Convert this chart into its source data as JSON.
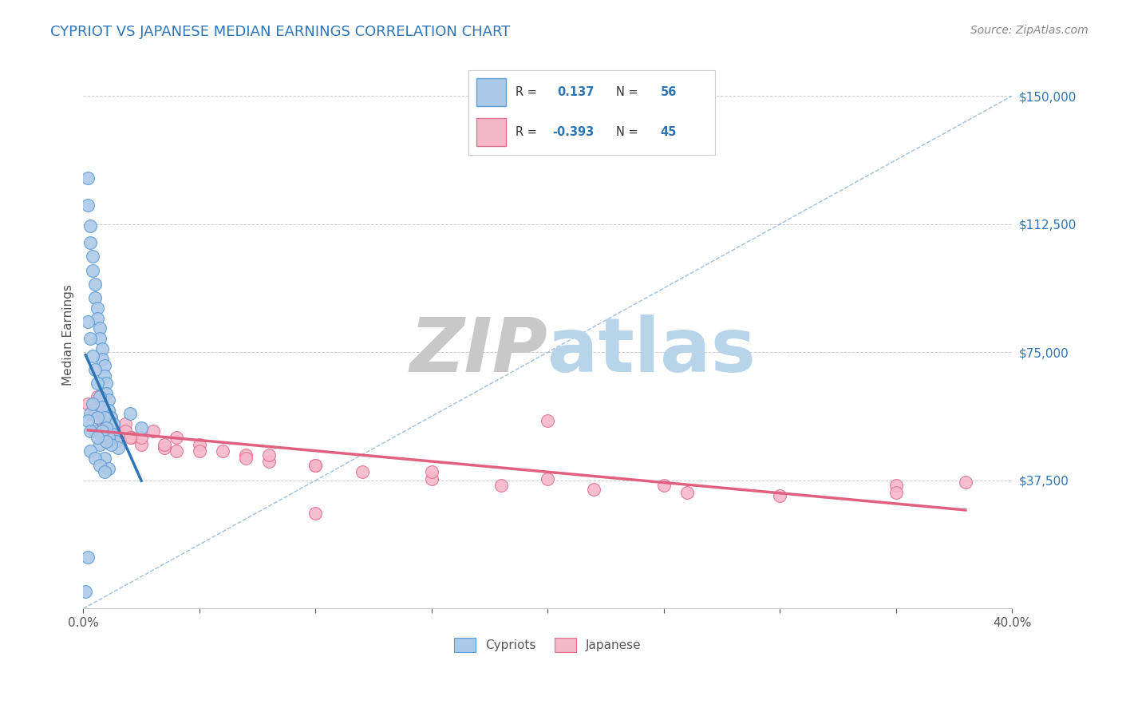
{
  "title": "CYPRIOT VS JAPANESE MEDIAN EARNINGS CORRELATION CHART",
  "source": "Source: ZipAtlas.com",
  "ylabel": "Median Earnings",
  "xlim": [
    0.0,
    0.4
  ],
  "ylim": [
    0,
    160000
  ],
  "yticks": [
    0,
    37500,
    75000,
    112500,
    150000
  ],
  "grid_color": "#cccccc",
  "background_color": "#ffffff",
  "cypriot_color": "#adc9e8",
  "cypriot_edge_color": "#5b9bd5",
  "japanese_color": "#f5b8c8",
  "japanese_edge_color": "#e07090",
  "cypriot_R": 0.137,
  "cypriot_N": 56,
  "japanese_R": -0.393,
  "japanese_N": 45,
  "cypriot_line_color": "#2e75b6",
  "japanese_line_color": "#e06080",
  "diagonal_line_color": "#8ab4d8",
  "watermark_ZIP": "ZIP",
  "watermark_atlas": "atlas",
  "watermark_ZIP_color": "#c8c8c8",
  "watermark_atlas_color": "#b8d4e8",
  "legend_label_cypriot": "Cypriots",
  "legend_label_japanese": "Japanese",
  "ytick_color": "#2e75b6",
  "title_color": "#2e75b6",
  "source_color": "#888888",
  "ylabel_color": "#555555",
  "xtick_color": "#555555",
  "cypriot_points_x": [
    0.002,
    0.002,
    0.003,
    0.003,
    0.004,
    0.004,
    0.005,
    0.005,
    0.006,
    0.006,
    0.007,
    0.007,
    0.008,
    0.008,
    0.009,
    0.009,
    0.01,
    0.01,
    0.011,
    0.011,
    0.012,
    0.013,
    0.013,
    0.014,
    0.015,
    0.002,
    0.003,
    0.004,
    0.005,
    0.006,
    0.007,
    0.008,
    0.009,
    0.01,
    0.011,
    0.012,
    0.003,
    0.005,
    0.007,
    0.009,
    0.011,
    0.004,
    0.006,
    0.008,
    0.01,
    0.003,
    0.005,
    0.007,
    0.009,
    0.02,
    0.025,
    0.002,
    0.003,
    0.006,
    0.002,
    0.001
  ],
  "cypriot_points_y": [
    126000,
    118000,
    112000,
    107000,
    103000,
    99000,
    95000,
    91000,
    88000,
    85000,
    82000,
    79000,
    76000,
    73000,
    71000,
    68000,
    66000,
    63000,
    61000,
    58000,
    56000,
    54000,
    51000,
    49000,
    47000,
    84000,
    79000,
    74000,
    70000,
    66000,
    62000,
    59000,
    56000,
    53000,
    50000,
    48000,
    57000,
    52000,
    48000,
    44000,
    41000,
    60000,
    56000,
    52000,
    49000,
    46000,
    44000,
    42000,
    40000,
    57000,
    53000,
    55000,
    52000,
    50000,
    15000,
    5000
  ],
  "japanese_points_x": [
    0.002,
    0.004,
    0.006,
    0.008,
    0.01,
    0.012,
    0.015,
    0.018,
    0.021,
    0.025,
    0.03,
    0.035,
    0.04,
    0.05,
    0.06,
    0.07,
    0.08,
    0.1,
    0.12,
    0.15,
    0.18,
    0.22,
    0.26,
    0.3,
    0.35,
    0.008,
    0.012,
    0.018,
    0.025,
    0.035,
    0.05,
    0.07,
    0.1,
    0.15,
    0.2,
    0.25,
    0.35,
    0.005,
    0.01,
    0.02,
    0.04,
    0.08,
    0.2,
    0.38,
    0.1
  ],
  "japanese_points_y": [
    60000,
    58000,
    62000,
    55000,
    57000,
    53000,
    51000,
    54000,
    50000,
    48000,
    52000,
    47000,
    50000,
    48000,
    46000,
    45000,
    43000,
    42000,
    40000,
    38000,
    36000,
    35000,
    34000,
    33000,
    36000,
    60000,
    56000,
    52000,
    50000,
    48000,
    46000,
    44000,
    42000,
    40000,
    38000,
    36000,
    34000,
    58000,
    54000,
    50000,
    46000,
    45000,
    55000,
    37000,
    28000
  ]
}
